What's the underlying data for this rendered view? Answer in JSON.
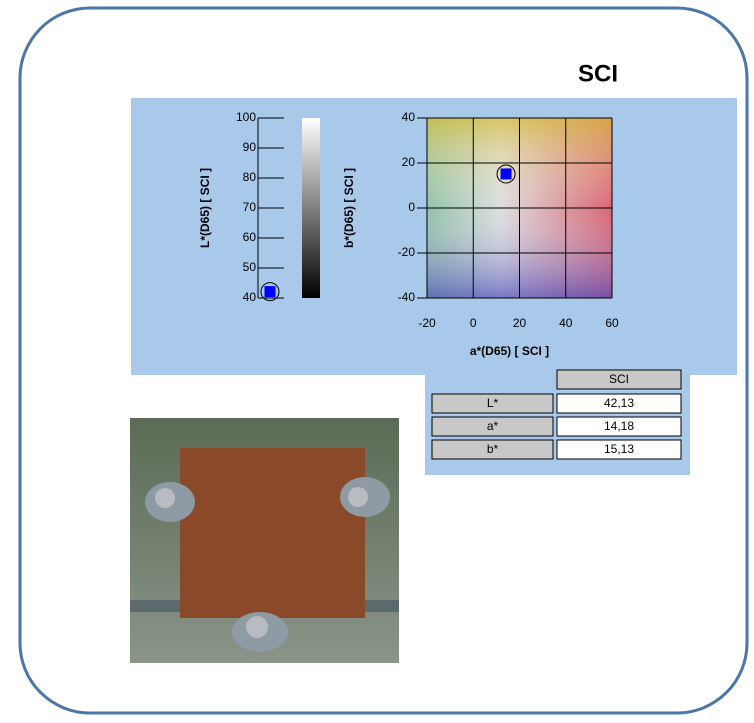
{
  "title": "SCI",
  "chart_data": [
    {
      "type": "lightness",
      "ylabel": "L*(D65) [ SCI ]",
      "values": [
        42.13
      ],
      "color": "#0000ff",
      "ylim": [
        40,
        100
      ],
      "yticks": [
        40,
        50,
        60,
        70,
        80,
        90,
        100
      ]
    },
    {
      "type": "scatter",
      "xlabel": "a*(D65) [ SCI ]",
      "ylabel": "b*(D65) [ SCI ]",
      "x": [
        14.18
      ],
      "values": [
        15.13
      ],
      "color": "#0000ff",
      "xlim": [
        -20,
        60
      ],
      "ylim": [
        -40,
        40
      ],
      "xticks": [
        -20,
        0,
        20,
        40,
        60
      ],
      "yticks": [
        -40,
        -20,
        0,
        20,
        40
      ],
      "grid": true
    }
  ],
  "table": {
    "header": "SCI",
    "rows": [
      [
        "L*",
        "42,13"
      ],
      [
        "a*",
        "14,18"
      ],
      [
        "b*",
        "15,13"
      ]
    ]
  }
}
